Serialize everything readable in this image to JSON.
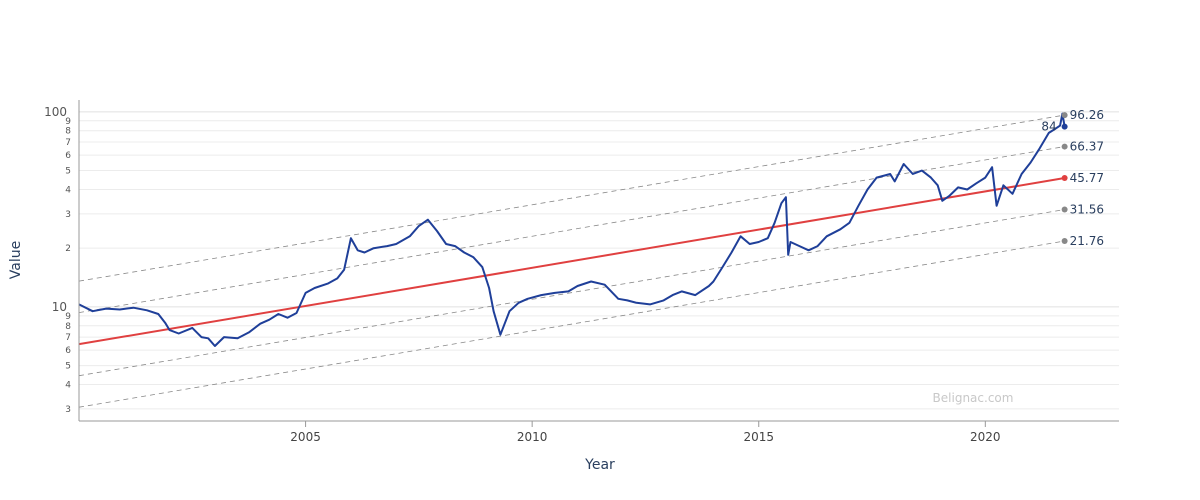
{
  "chart_data": {
    "type": "line",
    "title": "",
    "xlabel": "Year",
    "ylabel": "Value",
    "yscale": "log",
    "ylim": [
      2.6,
      115
    ],
    "xlim": [
      2000.0,
      2022.95
    ],
    "grid": true,
    "legend": "none",
    "watermark": "Belignac.com",
    "x_ticks": [
      "2005",
      "2010",
      "2015",
      "2020"
    ],
    "y_major_ticks": [
      "10",
      "100"
    ],
    "y_minor_ticks": [
      {
        "value": 3,
        "label": "3"
      },
      {
        "value": 4,
        "label": "4"
      },
      {
        "value": 5,
        "label": "5"
      },
      {
        "value": 6,
        "label": "6"
      },
      {
        "value": 7,
        "label": "7"
      },
      {
        "value": 8,
        "label": "8"
      },
      {
        "value": 9,
        "label": "9"
      },
      {
        "value": 20,
        "label": "2"
      },
      {
        "value": 30,
        "label": "3"
      },
      {
        "value": 40,
        "label": "4"
      },
      {
        "value": 50,
        "label": "5"
      },
      {
        "value": 60,
        "label": "6"
      },
      {
        "value": 70,
        "label": "7"
      },
      {
        "value": 80,
        "label": "8"
      },
      {
        "value": 90,
        "label": "9"
      }
    ],
    "series": [
      {
        "color": "#1f3f99",
        "x": [
          2000.0,
          2000.3,
          2000.6,
          2000.9,
          2001.2,
          2001.5,
          2001.75,
          2001.9,
          2002.0,
          2002.2,
          2002.5,
          2002.7,
          2002.85,
          2003.0,
          2003.2,
          2003.5,
          2003.75,
          2004.0,
          2004.2,
          2004.4,
          2004.6,
          2004.8,
          2005.0,
          2005.2,
          2005.5,
          2005.7,
          2005.85,
          2006.0,
          2006.15,
          2006.3,
          2006.5,
          2006.8,
          2007.0,
          2007.3,
          2007.5,
          2007.7,
          2007.9,
          2008.1,
          2008.3,
          2008.5,
          2008.7,
          2008.9,
          2009.05,
          2009.15,
          2009.3,
          2009.5,
          2009.7,
          2009.9,
          2010.2,
          2010.5,
          2010.8,
          2011.0,
          2011.3,
          2011.6,
          2011.9,
          2012.1,
          2012.3,
          2012.6,
          2012.9,
          2013.1,
          2013.3,
          2013.6,
          2013.9,
          2014.0,
          2014.2,
          2014.4,
          2014.6,
          2014.8,
          2015.0,
          2015.2,
          2015.35,
          2015.5,
          2015.6,
          2015.65,
          2015.7,
          2015.9,
          2016.1,
          2016.3,
          2016.5,
          2016.8,
          2017.0,
          2017.2,
          2017.4,
          2017.6,
          2017.9,
          2018.0,
          2018.2,
          2018.4,
          2018.6,
          2018.8,
          2018.95,
          2019.05,
          2019.2,
          2019.4,
          2019.6,
          2019.8,
          2020.0,
          2020.15,
          2020.25,
          2020.4,
          2020.6,
          2020.8,
          2021.0,
          2021.2,
          2021.4,
          2021.55,
          2021.65,
          2021.7,
          2021.75
        ],
        "y": [
          10.3,
          9.5,
          9.8,
          9.7,
          9.9,
          9.6,
          9.2,
          8.3,
          7.6,
          7.3,
          7.8,
          7.0,
          6.9,
          6.3,
          7.0,
          6.9,
          7.4,
          8.2,
          8.6,
          9.2,
          8.8,
          9.3,
          11.8,
          12.5,
          13.2,
          14.0,
          15.5,
          22.5,
          19.5,
          19.0,
          20.0,
          20.5,
          21.0,
          23.0,
          26.0,
          28.0,
          24.5,
          21.0,
          20.5,
          19.0,
          18.0,
          16.0,
          12.5,
          9.5,
          7.2,
          9.5,
          10.5,
          11.0,
          11.5,
          11.8,
          12.0,
          12.8,
          13.5,
          13.0,
          11.0,
          10.8,
          10.5,
          10.3,
          10.8,
          11.5,
          12.0,
          11.5,
          12.8,
          13.5,
          16.0,
          19.0,
          23.0,
          21.0,
          21.5,
          22.5,
          27.0,
          34.0,
          36.5,
          18.5,
          21.5,
          20.5,
          19.5,
          20.5,
          23.0,
          25.0,
          27.0,
          33.0,
          40.0,
          46.0,
          48.0,
          44.0,
          54.0,
          48.0,
          50.0,
          46.0,
          42.0,
          35.0,
          37.0,
          41.0,
          40.0,
          43.0,
          46.0,
          52.0,
          33.0,
          42.0,
          38.0,
          48.0,
          55.0,
          65.0,
          78.0,
          82.0,
          85.0,
          98.0,
          84.0
        ]
      }
    ],
    "regression": {
      "color": "#e04040",
      "x": [
        2000.0,
        2021.75
      ],
      "y": [
        6.44,
        45.77
      ]
    },
    "bands": [
      {
        "x": [
          2000.0,
          2021.75
        ],
        "y": [
          13.55,
          96.26
        ],
        "label": "96.26"
      },
      {
        "x": [
          2000.0,
          2021.75
        ],
        "y": [
          9.35,
          66.37
        ],
        "label": "66.37"
      },
      {
        "x": [
          2000.0,
          2021.75
        ],
        "y": [
          4.44,
          31.56
        ],
        "label": "31.56"
      },
      {
        "x": [
          2000.0,
          2021.75
        ],
        "y": [
          3.06,
          21.76
        ],
        "label": "21.76"
      }
    ],
    "regression_label": "45.77",
    "last_value_label": "84"
  }
}
